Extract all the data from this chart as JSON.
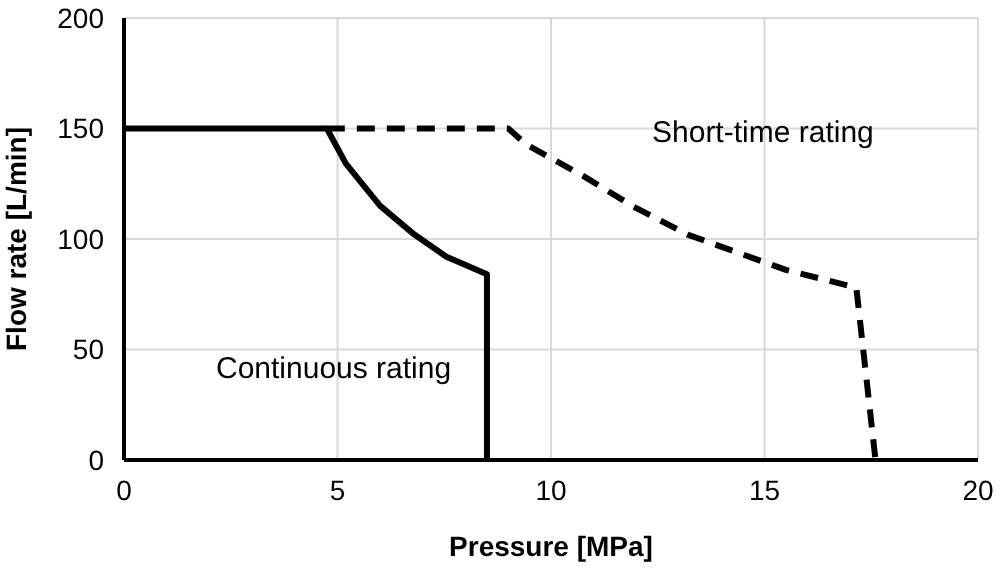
{
  "chart_data": {
    "type": "line",
    "xlabel": "Pressure [MPa]",
    "ylabel": "Flow rate [L/min]",
    "xlim": [
      0,
      20
    ],
    "xticks": [
      0,
      5,
      10,
      15,
      20
    ],
    "ylim": [
      0,
      200
    ],
    "yticks": [
      0,
      50,
      100,
      150,
      200
    ],
    "grid": true,
    "marker": "none",
    "series": [
      {
        "name": "Continuous rating",
        "color": "#000000",
        "line_style": "solid",
        "x": [
          0,
          4.75,
          5.2,
          6.0,
          6.8,
          7.55,
          8.5,
          8.5
        ],
        "values": [
          150,
          150,
          134,
          115,
          102,
          92,
          84,
          0
        ]
      },
      {
        "name": "Short-time rating",
        "color": "#000000",
        "line_style": "dashed",
        "x": [
          4.75,
          9.0,
          9.4,
          10.8,
          11.9,
          13.2,
          15.5,
          17.15,
          17.6
        ],
        "values": [
          150,
          150,
          143,
          128,
          115,
          102,
          86,
          78,
          0
        ]
      }
    ]
  }
}
